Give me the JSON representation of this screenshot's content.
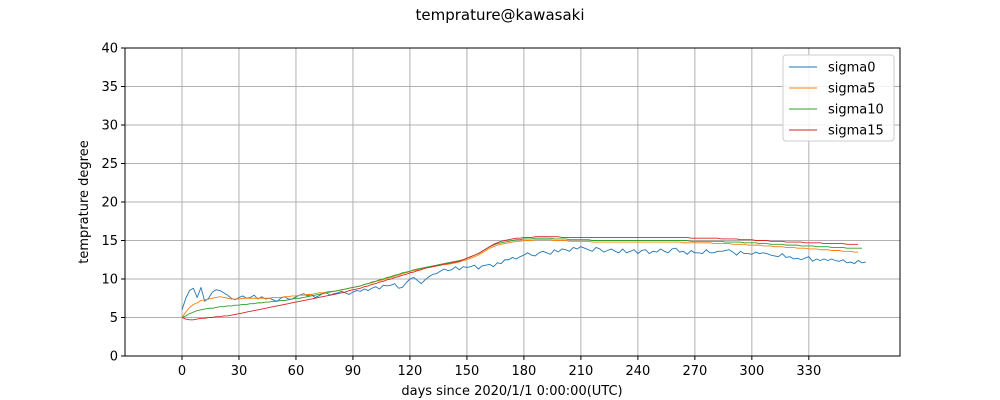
{
  "chart_data": {
    "type": "line",
    "title": "temprature@kawasaki",
    "xlabel": "days since 2020/1/1 0:00:00(UTC)",
    "ylabel": "temprature degree",
    "xlim": [
      -30,
      378
    ],
    "ylim": [
      0,
      40
    ],
    "xticks": [
      0,
      30,
      60,
      90,
      120,
      150,
      180,
      210,
      240,
      270,
      300,
      330
    ],
    "yticks": [
      0,
      5,
      10,
      15,
      20,
      25,
      30,
      35,
      40
    ],
    "grid": true,
    "legend_position": "top-right",
    "x_step_days": 2,
    "series": [
      {
        "name": "sigma0",
        "color": "#1f77b4",
        "x_start": 0,
        "values": [
          6.0,
          7.5,
          8.5,
          8.8,
          7.6,
          8.9,
          7.1,
          7.5,
          8.3,
          8.6,
          8.5,
          8.2,
          7.9,
          7.5,
          7.3,
          7.6,
          7.8,
          7.5,
          7.6,
          7.9,
          7.4,
          7.7,
          7.4,
          7.5,
          7.3,
          7.1,
          7.5,
          7.7,
          7.4,
          7.4,
          7.7,
          7.9,
          8.1,
          7.8,
          8.0,
          7.6,
          7.8,
          8.1,
          8.2,
          7.9,
          8.1,
          8.2,
          8.4,
          8.2,
          8.0,
          8.3,
          8.5,
          8.4,
          8.7,
          8.5,
          8.8,
          9.0,
          8.7,
          9.2,
          9.1,
          9.2,
          9.4,
          8.8,
          8.9,
          9.5,
          10.0,
          10.2,
          9.8,
          9.4,
          9.9,
          10.3,
          10.6,
          10.7,
          11.0,
          11.3,
          11.1,
          11.2,
          11.6,
          11.2,
          11.6,
          11.5,
          11.6,
          11.8,
          11.3,
          11.7,
          11.8,
          11.9,
          11.6,
          12.1,
          12.0,
          12.5,
          12.5,
          12.8,
          12.6,
          12.9,
          13.1,
          13.4,
          13.1,
          13.0,
          13.4,
          13.6,
          13.4,
          13.2,
          13.8,
          13.5,
          13.9,
          13.8,
          13.6,
          14.1,
          13.9,
          14.2,
          14.0,
          13.8,
          13.6,
          14.1,
          13.9,
          13.5,
          13.7,
          13.9,
          13.6,
          13.4,
          13.9,
          13.4,
          13.6,
          13.8,
          13.3,
          13.7,
          13.8,
          13.3,
          13.6,
          13.5,
          13.9,
          13.6,
          13.4,
          13.9,
          14.0,
          13.5,
          13.6,
          13.2,
          13.7,
          13.4,
          13.4,
          13.3,
          13.8,
          13.4,
          13.4,
          13.6,
          13.6,
          13.7,
          13.8,
          13.5,
          13.1,
          13.6,
          13.3,
          13.3,
          13.2,
          13.5,
          13.3,
          13.4,
          13.3,
          13.1,
          13.0,
          12.9,
          13.3,
          12.8,
          12.9,
          12.6,
          12.7,
          12.5,
          12.7,
          12.9,
          12.3,
          12.6,
          12.4,
          12.6,
          12.4,
          12.6,
          12.4,
          12.3,
          12.5,
          12.1,
          12.2,
          12.0,
          12.4,
          12.1,
          12.2
        ]
      },
      {
        "name": "sigma5",
        "color": "#ff7f0e",
        "x_start": 0,
        "values": [
          5.0,
          5.7,
          6.3,
          6.7,
          6.9,
          7.2,
          7.3,
          7.4,
          7.5,
          7.6,
          7.7,
          7.6,
          7.5,
          7.4,
          7.4,
          7.4,
          7.5,
          7.5,
          7.5,
          7.5,
          7.5,
          7.5,
          7.5,
          7.5,
          7.6,
          7.6,
          7.6,
          7.7,
          7.7,
          7.8,
          7.8,
          7.9,
          7.9,
          8.0,
          8.0,
          8.1,
          8.2,
          8.2,
          8.3,
          8.4,
          8.4,
          8.5,
          8.6,
          8.7,
          8.8,
          8.9,
          9.0,
          9.1,
          9.3,
          9.4,
          9.5,
          9.7,
          9.8,
          9.9,
          10.1,
          10.2,
          10.4,
          10.5,
          10.7,
          10.8,
          11.0,
          11.1,
          11.2,
          11.3,
          11.4,
          11.5,
          11.6,
          11.7,
          11.8,
          11.9,
          11.9,
          12.0,
          12.1,
          12.2,
          12.4,
          12.5,
          12.7,
          12.9,
          13.1,
          13.4,
          13.7,
          14.0,
          14.2,
          14.4,
          14.5,
          14.6,
          14.7,
          14.8,
          14.9,
          14.9,
          15.0,
          15.0,
          15.0,
          15.1,
          15.1,
          15.1,
          15.1,
          15.1,
          15.0,
          15.0,
          15.0,
          15.0,
          14.9,
          14.9,
          14.9,
          14.9,
          14.9,
          14.9,
          14.8,
          14.8,
          14.8,
          14.8,
          14.8,
          14.8,
          14.8,
          14.8,
          14.8,
          14.8,
          14.8,
          14.8,
          14.8,
          14.8,
          14.8,
          14.8,
          14.8,
          14.8,
          14.8,
          14.8,
          14.8,
          14.8,
          14.8,
          14.8,
          14.7,
          14.7,
          14.7,
          14.7,
          14.7,
          14.7,
          14.7,
          14.7,
          14.6,
          14.6,
          14.6,
          14.6,
          14.6,
          14.5,
          14.5,
          14.5,
          14.5,
          14.4,
          14.4,
          14.4,
          14.4,
          14.3,
          14.3,
          14.3,
          14.2,
          14.2,
          14.2,
          14.1,
          14.1,
          14.1,
          14.0,
          14.0,
          14.0,
          13.9,
          13.9,
          13.9,
          13.8,
          13.8,
          13.8,
          13.7,
          13.7,
          13.7,
          13.6,
          13.6,
          13.6,
          13.5,
          13.5
        ]
      },
      {
        "name": "sigma10",
        "color": "#2ca02c",
        "x_start": 0,
        "values": [
          5.0,
          5.2,
          5.5,
          5.7,
          5.9,
          6.0,
          6.1,
          6.2,
          6.2,
          6.3,
          6.4,
          6.4,
          6.5,
          6.5,
          6.6,
          6.6,
          6.7,
          6.7,
          6.8,
          6.8,
          6.9,
          6.9,
          7.0,
          7.0,
          7.1,
          7.1,
          7.2,
          7.2,
          7.3,
          7.4,
          7.5,
          7.5,
          7.6,
          7.7,
          7.8,
          7.9,
          8.0,
          8.1,
          8.2,
          8.3,
          8.4,
          8.5,
          8.6,
          8.7,
          8.8,
          8.9,
          9.0,
          9.1,
          9.3,
          9.4,
          9.6,
          9.7,
          9.9,
          10.0,
          10.2,
          10.3,
          10.5,
          10.6,
          10.8,
          10.9,
          11.0,
          11.2,
          11.3,
          11.4,
          11.5,
          11.6,
          11.7,
          11.8,
          11.9,
          12.0,
          12.1,
          12.2,
          12.3,
          12.4,
          12.5,
          12.7,
          12.9,
          13.1,
          13.3,
          13.6,
          13.9,
          14.2,
          14.4,
          14.6,
          14.7,
          14.8,
          14.9,
          15.0,
          15.1,
          15.1,
          15.2,
          15.2,
          15.2,
          15.3,
          15.3,
          15.3,
          15.3,
          15.3,
          15.2,
          15.2,
          15.2,
          15.2,
          15.1,
          15.1,
          15.1,
          15.1,
          15.1,
          15.1,
          15.0,
          15.0,
          15.0,
          15.0,
          15.0,
          15.0,
          15.0,
          15.0,
          15.0,
          15.0,
          15.0,
          15.0,
          15.0,
          15.0,
          15.0,
          15.0,
          15.0,
          15.0,
          15.0,
          15.0,
          15.0,
          15.0,
          15.0,
          15.0,
          15.0,
          15.0,
          14.9,
          14.9,
          14.9,
          14.9,
          14.9,
          14.9,
          14.9,
          14.9,
          14.9,
          14.8,
          14.8,
          14.8,
          14.8,
          14.8,
          14.7,
          14.7,
          14.7,
          14.7,
          14.6,
          14.6,
          14.6,
          14.5,
          14.5,
          14.5,
          14.5,
          14.4,
          14.4,
          14.4,
          14.4,
          14.3,
          14.3,
          14.3,
          14.3,
          14.2,
          14.2,
          14.2,
          14.2,
          14.1,
          14.1,
          14.1,
          14.1,
          14.0,
          14.0,
          14.0,
          14.0,
          14.0
        ]
      },
      {
        "name": "sigma15",
        "color": "#d62728",
        "x_start": 0,
        "values": [
          5.0,
          4.8,
          4.7,
          4.7,
          4.8,
          4.9,
          4.9,
          5.0,
          5.0,
          5.1,
          5.1,
          5.2,
          5.2,
          5.3,
          5.4,
          5.5,
          5.6,
          5.7,
          5.8,
          5.9,
          6.0,
          6.1,
          6.2,
          6.3,
          6.4,
          6.5,
          6.6,
          6.7,
          6.8,
          6.9,
          7.0,
          7.1,
          7.2,
          7.3,
          7.4,
          7.5,
          7.6,
          7.7,
          7.8,
          7.9,
          8.0,
          8.1,
          8.2,
          8.3,
          8.5,
          8.6,
          8.7,
          8.8,
          9.0,
          9.1,
          9.3,
          9.4,
          9.6,
          9.7,
          9.9,
          10.0,
          10.2,
          10.3,
          10.5,
          10.6,
          10.8,
          10.9,
          11.1,
          11.2,
          11.4,
          11.5,
          11.6,
          11.7,
          11.8,
          11.9,
          12.0,
          12.1,
          12.2,
          12.3,
          12.5,
          12.7,
          12.9,
          13.1,
          13.3,
          13.6,
          13.9,
          14.2,
          14.5,
          14.7,
          14.9,
          15.0,
          15.1,
          15.2,
          15.3,
          15.3,
          15.4,
          15.4,
          15.4,
          15.5,
          15.5,
          15.5,
          15.5,
          15.5,
          15.5,
          15.5,
          15.4,
          15.4,
          15.4,
          15.4,
          15.4,
          15.4,
          15.4,
          15.4,
          15.4,
          15.4,
          15.4,
          15.4,
          15.4,
          15.4,
          15.4,
          15.4,
          15.4,
          15.4,
          15.4,
          15.4,
          15.4,
          15.4,
          15.4,
          15.4,
          15.4,
          15.4,
          15.4,
          15.4,
          15.4,
          15.4,
          15.4,
          15.4,
          15.4,
          15.4,
          15.3,
          15.3,
          15.3,
          15.3,
          15.3,
          15.3,
          15.3,
          15.3,
          15.2,
          15.2,
          15.2,
          15.2,
          15.2,
          15.1,
          15.1,
          15.1,
          15.1,
          15.0,
          15.0,
          15.0,
          15.0,
          14.9,
          14.9,
          14.9,
          14.9,
          14.8,
          14.8,
          14.8,
          14.8,
          14.8,
          14.7,
          14.7,
          14.7,
          14.7,
          14.7,
          14.6,
          14.6,
          14.6,
          14.6,
          14.6,
          14.6,
          14.5,
          14.5,
          14.5,
          14.5
        ]
      }
    ]
  }
}
